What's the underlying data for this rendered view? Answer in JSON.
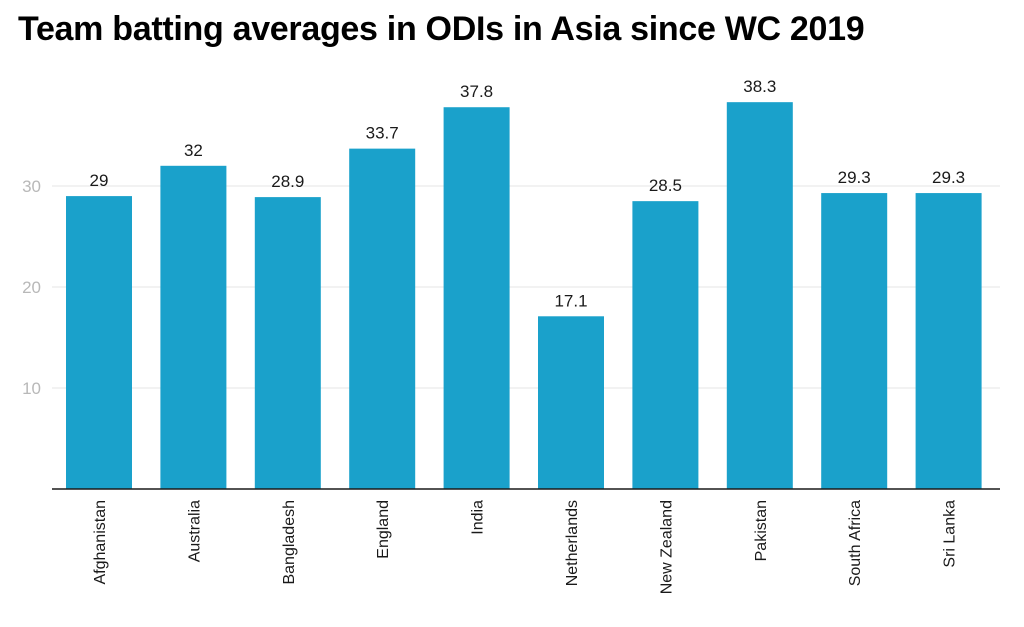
{
  "chart_data": {
    "type": "bar",
    "title": "Team batting averages in ODIs in Asia since WC 2019",
    "xlabel": "",
    "ylabel": "",
    "categories": [
      "Afghanistan",
      "Australia",
      "Bangladesh",
      "England",
      "India",
      "Netherlands",
      "New Zealand",
      "Pakistan",
      "South Africa",
      "Sri Lanka"
    ],
    "values": [
      29,
      32,
      28.9,
      33.7,
      37.8,
      17.1,
      28.5,
      38.3,
      29.3,
      29.3
    ],
    "value_labels": [
      "29",
      "32",
      "28.9",
      "33.7",
      "37.8",
      "17.1",
      "28.5",
      "38.3",
      "29.3",
      "29.3"
    ],
    "yticks": [
      10,
      20,
      30
    ],
    "ylim": [
      0,
      40
    ],
    "grid": true,
    "legend": "none",
    "bar_color": "#1aa1cb",
    "gridline_color": "#e6e6e6",
    "axis_color": "#1a1a1a"
  }
}
